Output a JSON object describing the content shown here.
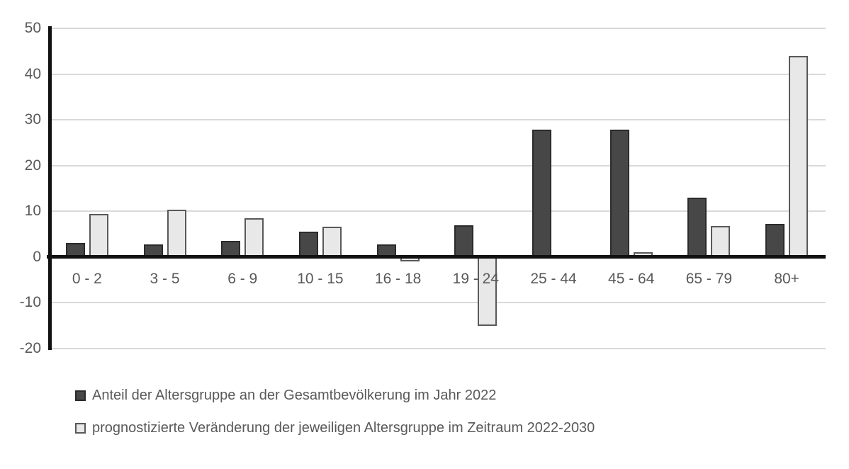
{
  "chart_data": {
    "type": "bar",
    "title": "",
    "xlabel": "",
    "ylabel": "",
    "categories": [
      "0 - 2",
      "3 - 5",
      "6 - 9",
      "10 - 15",
      "16 - 18",
      "19 - 24",
      "25 - 44",
      "45 - 64",
      "65 - 79",
      "80+"
    ],
    "series": [
      {
        "name": "Anteil der Altersgruppe an der Gesamtbevölkerung im Jahr 2022",
        "values": [
          3,
          2.8,
          3.5,
          5.5,
          2.7,
          7,
          27.8,
          27.8,
          13,
          7.2
        ],
        "fill": "#474747",
        "border": "#2b2b2b"
      },
      {
        "name": "prognostizierte Veränderung der jeweiligen Altersgruppe im Zeitraum 2022-2030",
        "values": [
          9.5,
          10.3,
          8.5,
          6.6,
          -1,
          -15,
          0,
          1,
          6.8,
          44
        ],
        "fill": "#e8e8e8",
        "border": "#595959"
      }
    ],
    "y_ticks": [
      50,
      40,
      30,
      20,
      10,
      0,
      -10,
      -20
    ],
    "ylim": [
      -20,
      50
    ],
    "grid": true,
    "legend_position": "bottom"
  },
  "colors": {
    "background": "#ffffff",
    "gridline": "#d9d9d9",
    "axis": "#111111",
    "tick_text": "#595959",
    "legend_text": "#595959"
  }
}
